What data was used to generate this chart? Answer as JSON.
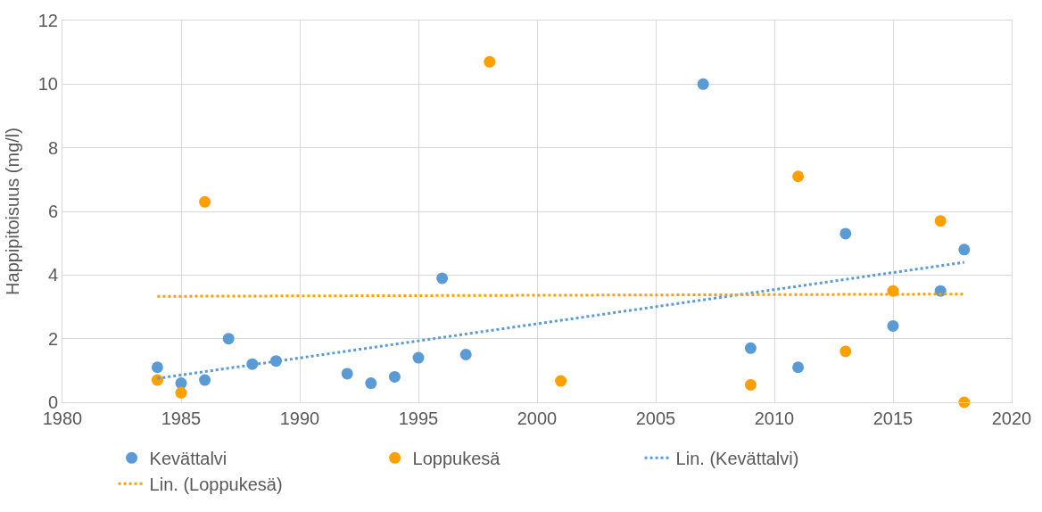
{
  "chart_data": {
    "type": "scatter",
    "ylabel": "Happipitoisuus (mg/l)",
    "xlim": [
      1980,
      2020
    ],
    "xticks": [
      1980,
      1985,
      1990,
      1995,
      2000,
      2005,
      2010,
      2015,
      2020
    ],
    "ylim": [
      0,
      12
    ],
    "yticks": [
      0,
      2,
      4,
      6,
      8,
      10,
      12
    ],
    "grid": true,
    "legend": "bottom",
    "marker": "circle",
    "series": [
      {
        "name": "Kevättalvi",
        "color": "#5b9bd5",
        "x": [
          1984,
          1985,
          1986,
          1987,
          1988,
          1989,
          1992,
          1993,
          1994,
          1995,
          1996,
          1997,
          2007,
          2009,
          2011,
          2013,
          2015,
          2017,
          2018
        ],
        "values": [
          1.1,
          0.6,
          0.7,
          2.0,
          1.2,
          1.3,
          0.9,
          0.6,
          0.8,
          1.4,
          3.9,
          1.5,
          10.0,
          1.7,
          1.1,
          5.3,
          2.4,
          3.5,
          4.8
        ]
      },
      {
        "name": "Loppukesä",
        "color": "#ffa000",
        "x": [
          1984,
          1985,
          1986,
          1998,
          2001,
          2009,
          2011,
          2013,
          2015,
          2017,
          2018
        ],
        "values": [
          0.7,
          0.3,
          6.3,
          10.7,
          0.67,
          0.55,
          7.1,
          1.6,
          3.5,
          5.7,
          0.0
        ]
      },
      {
        "name": "Lin. (Kevättalvi)",
        "type": "line",
        "line_style": "dotted",
        "marker": "none",
        "color": "#5b9bd5",
        "x": [
          1984,
          2018
        ],
        "values": [
          0.75,
          4.4
        ]
      },
      {
        "name": "Lin. (Loppukesä)",
        "type": "line",
        "line_style": "dotted",
        "marker": "none",
        "color": "#ffa000",
        "x": [
          1984,
          2018
        ],
        "values": [
          3.33,
          3.4
        ]
      }
    ]
  }
}
